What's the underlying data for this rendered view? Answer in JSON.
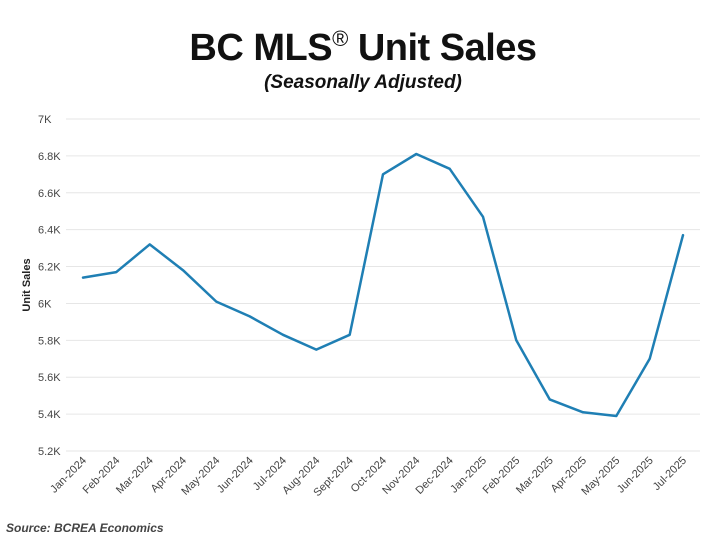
{
  "title_main": "BC MLS",
  "title_symbol": "®",
  "title_rest": " Unit Sales",
  "subtitle": "(Seasonally Adjusted)",
  "source": "Source: BCREA Economics",
  "chart_data": {
    "type": "line",
    "title": "BC MLS® Unit Sales",
    "subtitle": "(Seasonally Adjusted)",
    "xlabel": "",
    "ylabel": "Unit Sales",
    "categories": [
      "Jan-2024",
      "Feb-2024",
      "Mar-2024",
      "Apr-2024",
      "May-2024",
      "Jun-2024",
      "Jul-2024",
      "Aug-2024",
      "Sept-2024",
      "Oct-2024",
      "Nov-2024",
      "Dec-2024",
      "Jan-2025",
      "Feb-2025",
      "Mar-2025",
      "Apr-2025",
      "May-2025",
      "Jun-2025",
      "Jul-2025"
    ],
    "series": [
      {
        "values": [
          6140,
          6170,
          6320,
          6180,
          6010,
          5930,
          5830,
          5750,
          5830,
          6700,
          6810,
          6730,
          6470,
          5800,
          5480,
          5410,
          5390,
          5700,
          6370
        ]
      }
    ],
    "ylim": [
      5200,
      7000
    ],
    "yticks": [
      5200,
      5400,
      5600,
      5800,
      6000,
      6200,
      6400,
      6600,
      6800,
      7000
    ],
    "ytick_labels": [
      "5.2K",
      "5.4K",
      "5.6K",
      "5.8K",
      "6K",
      "6.2K",
      "6.4K",
      "6.6K",
      "6.8K",
      "7K"
    ],
    "grid": true,
    "line_color": "#1f7fb4",
    "grid_color": "#e6e6e6"
  }
}
